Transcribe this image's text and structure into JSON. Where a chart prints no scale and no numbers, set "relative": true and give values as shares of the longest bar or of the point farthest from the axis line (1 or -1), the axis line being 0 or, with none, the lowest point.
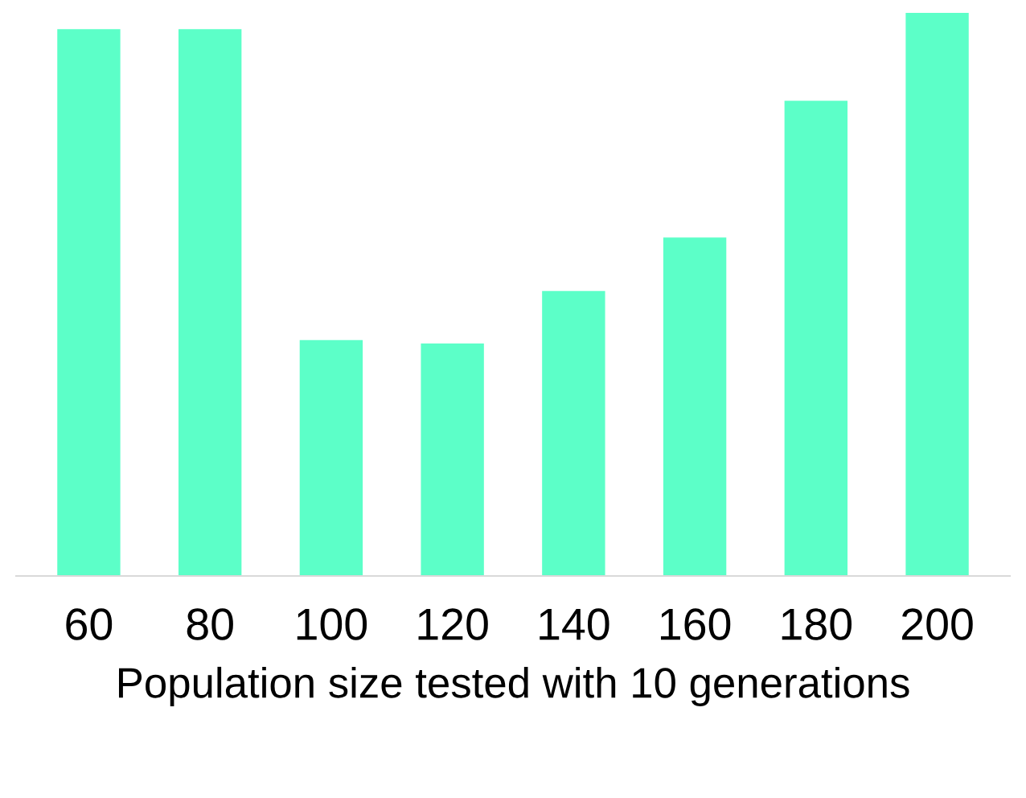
{
  "chart_data": {
    "type": "bar",
    "relative": true,
    "xlabel": "Population size tested with 10 generations",
    "categories": [
      "60",
      "80",
      "100",
      "120",
      "140",
      "160",
      "180",
      "200"
    ],
    "values": [
      0.971,
      0.971,
      0.419,
      0.413,
      0.506,
      0.601,
      0.844,
      1
    ],
    "color": "#5cffc8",
    "grid": false,
    "legend": false
  }
}
